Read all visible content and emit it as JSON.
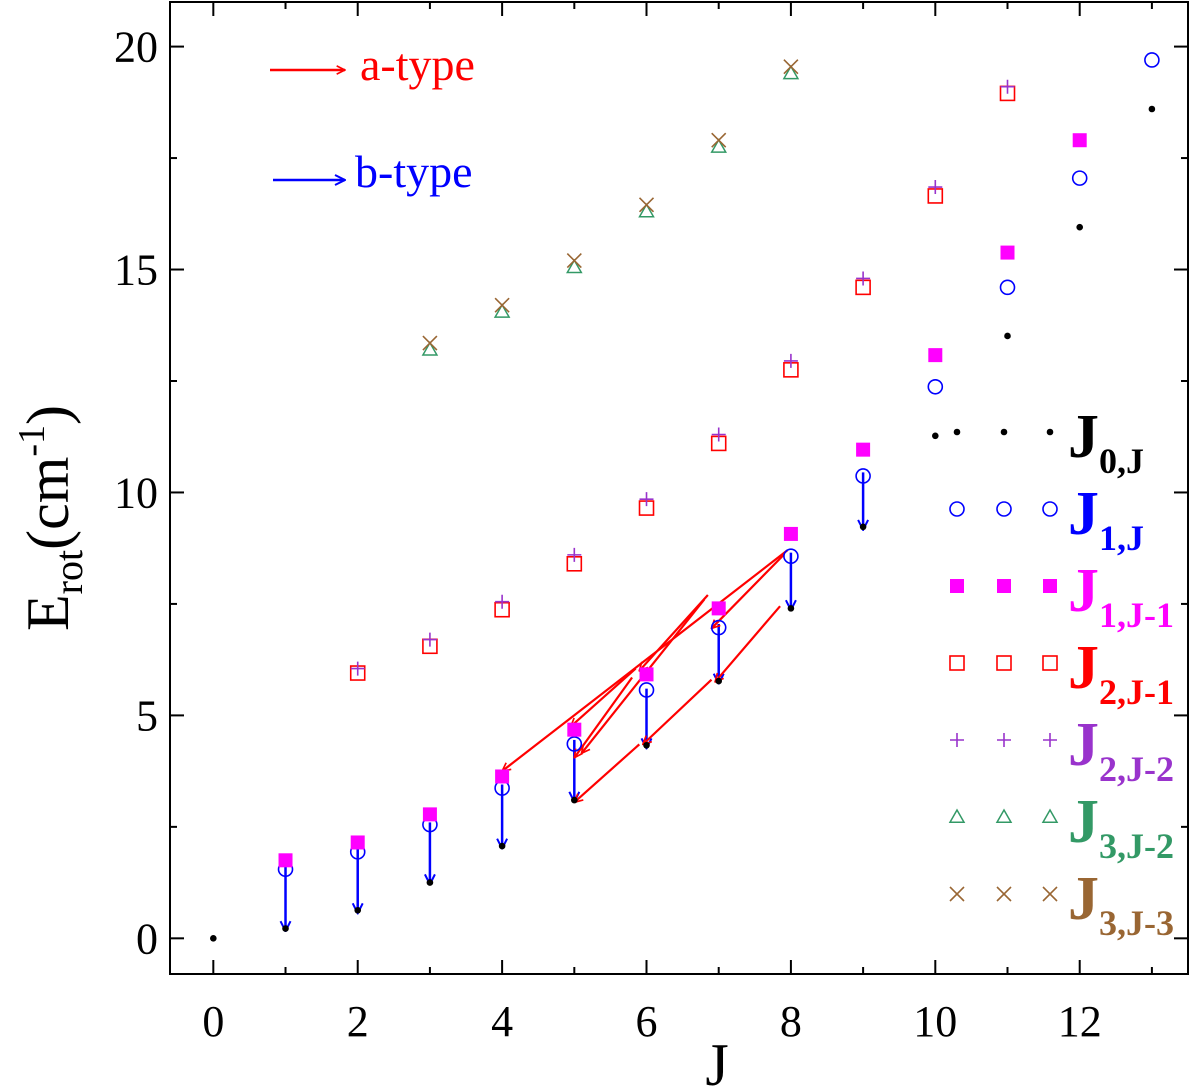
{
  "chart_data": {
    "type": "scatter",
    "xlabel": "J",
    "ylabel": {
      "main": "E",
      "sub": "rot",
      "unit_open": "(cm",
      "unit_exp": "-1",
      "unit_close": ")"
    },
    "xlim": [
      -0.6,
      13.5
    ],
    "ylim": [
      -0.8,
      21
    ],
    "xticks": [
      0,
      2,
      4,
      6,
      8,
      10,
      12
    ],
    "yticks": [
      0,
      5,
      10,
      15,
      20
    ],
    "grid": false,
    "legend_position": "right",
    "colors": {
      "red": "#ff0000",
      "blue": "#0000ff",
      "magenta": "#ff00ff",
      "purple": "#9933cc",
      "green": "#339966",
      "brown": "#996633",
      "black": "#000000"
    },
    "series": [
      {
        "key": "J0J",
        "main": "J",
        "sub": "0,J",
        "marker": "dot",
        "color": "#000000",
        "points": [
          [
            0,
            0
          ],
          [
            1,
            0.22
          ],
          [
            2,
            0.63
          ],
          [
            3,
            1.25
          ],
          [
            4,
            2.07
          ],
          [
            5,
            3.1
          ],
          [
            6,
            4.33
          ],
          [
            7,
            5.77
          ],
          [
            8,
            7.4
          ],
          [
            9,
            9.23
          ],
          [
            10,
            11.27
          ],
          [
            11,
            13.51
          ],
          [
            12,
            15.95
          ],
          [
            13,
            18.6
          ]
        ]
      },
      {
        "key": "J1J",
        "main": "J",
        "sub": "1,J",
        "marker": "circle",
        "color": "#0000ff",
        "points": [
          [
            1,
            1.55
          ],
          [
            2,
            1.94
          ],
          [
            3,
            2.55
          ],
          [
            4,
            3.37
          ],
          [
            5,
            4.36
          ],
          [
            6,
            5.57
          ],
          [
            7,
            6.97
          ],
          [
            8,
            8.57
          ],
          [
            9,
            10.37
          ],
          [
            10,
            12.37
          ],
          [
            11,
            14.6
          ],
          [
            12,
            17.05
          ],
          [
            13,
            19.7
          ]
        ]
      },
      {
        "key": "J1J-1",
        "main": "J",
        "sub": "1,J-1",
        "marker": "filled-square",
        "color": "#ff00ff",
        "points": [
          [
            1,
            1.75
          ],
          [
            2,
            2.15
          ],
          [
            3,
            2.78
          ],
          [
            4,
            3.63
          ],
          [
            5,
            4.68
          ],
          [
            6,
            5.92
          ],
          [
            7,
            7.4
          ],
          [
            8,
            9.07
          ],
          [
            9,
            10.96
          ],
          [
            10,
            13.08
          ],
          [
            11,
            15.38
          ],
          [
            12,
            17.9
          ]
        ]
      },
      {
        "key": "J2J-1",
        "main": "J",
        "sub": "2,J-1",
        "marker": "open-square",
        "color": "#ff0000",
        "points": [
          [
            2,
            5.95
          ],
          [
            3,
            6.55
          ],
          [
            4,
            7.37
          ],
          [
            5,
            8.4
          ],
          [
            6,
            9.65
          ],
          [
            7,
            11.1
          ],
          [
            8,
            12.75
          ],
          [
            9,
            14.6
          ],
          [
            10,
            16.65
          ],
          [
            11,
            18.95
          ]
        ]
      },
      {
        "key": "J2J-2",
        "main": "J",
        "sub": "2,J-2",
        "marker": "plus",
        "color": "#9933cc",
        "points": [
          [
            2,
            6.05
          ],
          [
            3,
            6.7
          ],
          [
            4,
            7.55
          ],
          [
            5,
            8.6
          ],
          [
            6,
            9.85
          ],
          [
            7,
            11.3
          ],
          [
            8,
            12.95
          ],
          [
            9,
            14.8
          ],
          [
            10,
            16.85
          ],
          [
            11,
            19.1
          ]
        ]
      },
      {
        "key": "J3J-2",
        "main": "J",
        "sub": "3,J-2",
        "marker": "triangle",
        "color": "#339966",
        "points": [
          [
            3,
            13.2
          ],
          [
            4,
            14.05
          ],
          [
            5,
            15.05
          ],
          [
            6,
            16.3
          ],
          [
            7,
            17.75
          ],
          [
            8,
            19.4
          ]
        ]
      },
      {
        "key": "J3J-3",
        "main": "J",
        "sub": "3,J-3",
        "marker": "x",
        "color": "#996633",
        "points": [
          [
            3,
            13.35
          ],
          [
            4,
            14.2
          ],
          [
            5,
            15.2
          ],
          [
            6,
            16.45
          ],
          [
            7,
            17.9
          ],
          [
            8,
            19.55
          ]
        ]
      }
    ],
    "legend_key": {
      "a_type": "a-type",
      "b_type": "b-type"
    },
    "a_type_arrows": [
      [
        [
          7.95,
          8.7
        ],
        [
          4.0,
          3.75
        ]
      ],
      [
        [
          7.9,
          8.6
        ],
        [
          6.9,
          6.95
        ]
      ],
      [
        [
          6.85,
          7.7
        ],
        [
          5.9,
          6.0
        ]
      ],
      [
        [
          6.8,
          7.6
        ],
        [
          5.1,
          4.15
        ]
      ],
      [
        [
          5.85,
          6.05
        ],
        [
          4.95,
          4.75
        ]
      ],
      [
        [
          5.8,
          5.85
        ],
        [
          5.0,
          4.05
        ]
      ],
      [
        [
          7.85,
          7.45
        ],
        [
          6.95,
          5.75
        ]
      ],
      [
        [
          6.9,
          5.8
        ],
        [
          5.95,
          4.35
        ]
      ],
      [
        [
          5.9,
          4.35
        ],
        [
          5.0,
          3.05
        ]
      ]
    ],
    "b_type_arrows": [
      [
        [
          1,
          1.6
        ],
        [
          1,
          0.25
        ]
      ],
      [
        [
          2,
          2.0
        ],
        [
          2,
          0.65
        ]
      ],
      [
        [
          3,
          2.6
        ],
        [
          3,
          1.3
        ]
      ],
      [
        [
          4,
          3.45
        ],
        [
          4,
          2.1
        ]
      ],
      [
        [
          5,
          4.45
        ],
        [
          5,
          3.15
        ]
      ],
      [
        [
          6,
          5.6
        ],
        [
          6,
          4.35
        ]
      ],
      [
        [
          7,
          7.05
        ],
        [
          7,
          5.8
        ]
      ],
      [
        [
          8,
          8.65
        ],
        [
          8,
          7.45
        ]
      ],
      [
        [
          9,
          10.45
        ],
        [
          9,
          9.25
        ]
      ]
    ]
  }
}
